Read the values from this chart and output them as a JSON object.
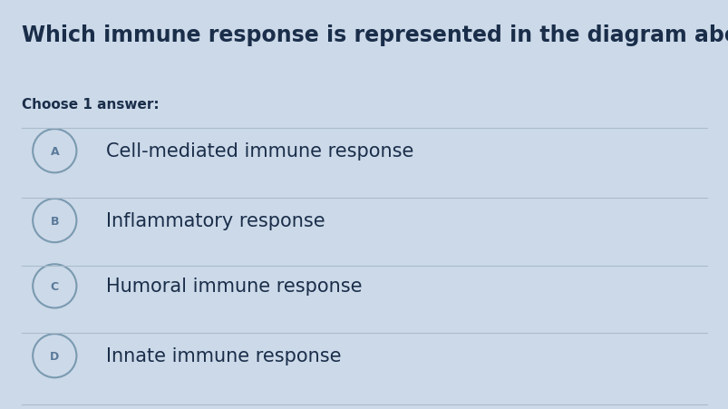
{
  "background_color": "#ccd9e8",
  "title": "Which immune response is represented in the diagram above?",
  "subtitle": "Choose 1 answer:",
  "title_fontsize": 17,
  "subtitle_fontsize": 11,
  "option_fontsize": 15,
  "text_color": "#1a2e4a",
  "label_color": "#5a7a9a",
  "divider_color": "#aabccc",
  "circle_edge_color": "#7a9ab0",
  "options": [
    {
      "label": "A",
      "text": "Cell-mediated immune response"
    },
    {
      "label": "B",
      "text": "Inflammatory response"
    },
    {
      "label": "C",
      "text": "Humoral immune response"
    },
    {
      "label": "D",
      "text": "Innate immune response"
    }
  ],
  "fig_width": 8.04,
  "fig_height": 4.52,
  "dpi": 100
}
